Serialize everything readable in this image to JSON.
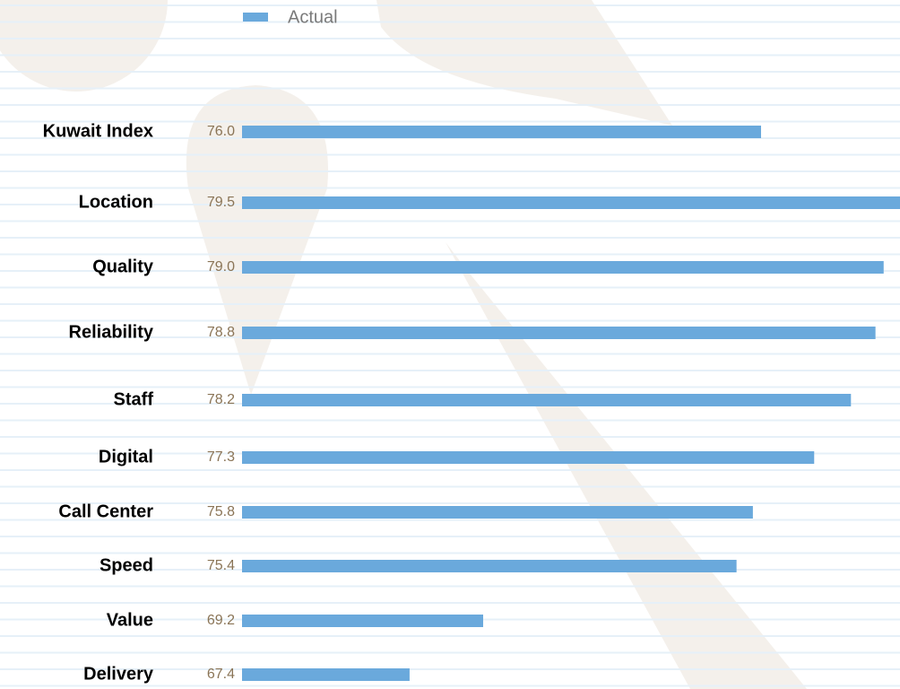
{
  "chart_data": {
    "type": "bar",
    "orientation": "horizontal",
    "categories": [
      "Kuwait Index",
      "Location",
      "Quality",
      "Reliability",
      "Staff",
      "Digital",
      "Call Center",
      "Speed",
      "Value",
      "Delivery"
    ],
    "series": [
      {
        "name": "Actual",
        "color": "#6aa9dc",
        "values": [
          76.0,
          79.5,
          79.0,
          78.8,
          78.2,
          77.3,
          75.8,
          75.4,
          69.2,
          67.4
        ],
        "value_labels": [
          "76.0",
          "79.5",
          "79.0",
          "78.8",
          "78.2",
          "77.3",
          "75.8",
          "75.4",
          "69.2",
          "67.4"
        ]
      }
    ],
    "xlim": [
      63.3,
      79.4
    ],
    "legend": "top"
  }
}
